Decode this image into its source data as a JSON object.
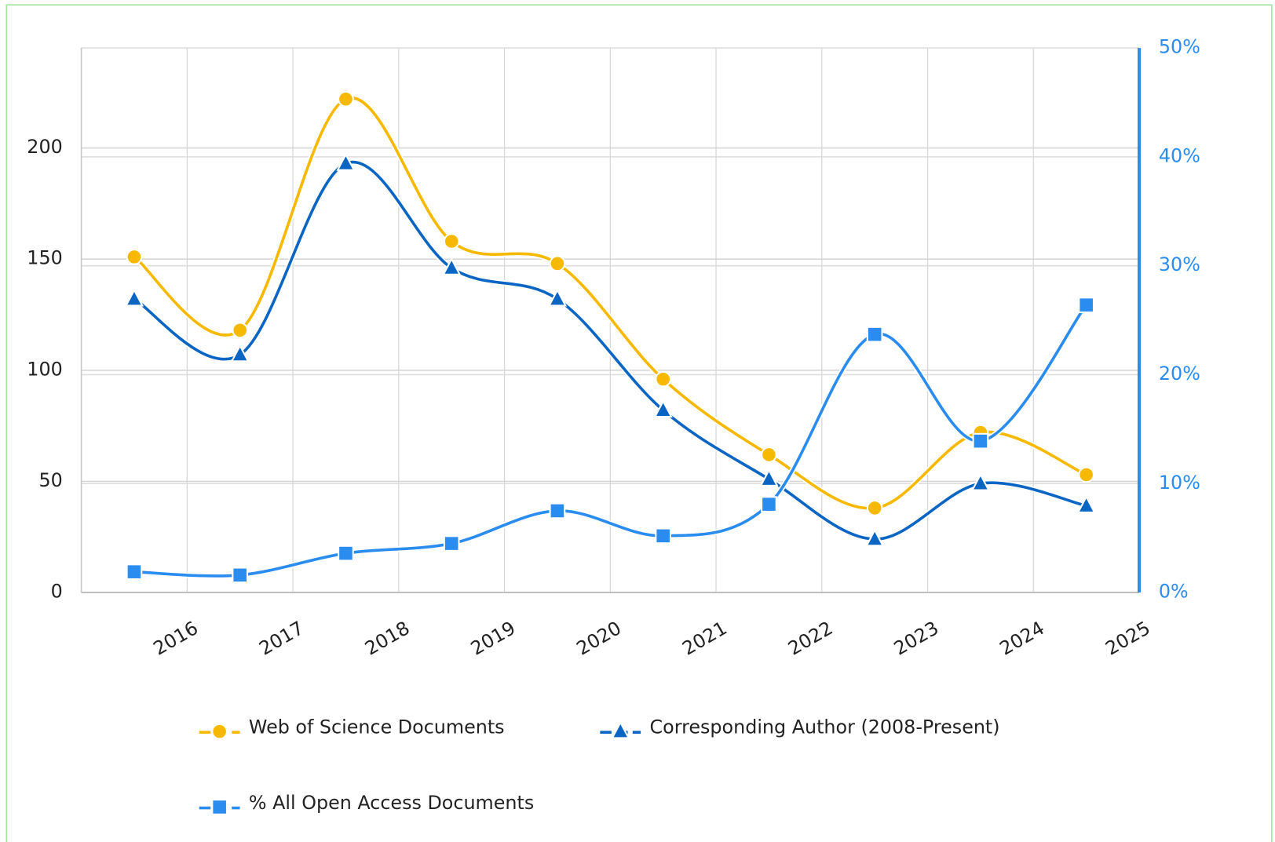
{
  "chart_data": {
    "type": "line",
    "categories": [
      "2016",
      "2017",
      "2018",
      "2019",
      "2020",
      "2021",
      "2022",
      "2023",
      "2024",
      "2025"
    ],
    "series": [
      {
        "name": "Web of Science Documents",
        "color": "#f7b900",
        "marker": "circle",
        "values": [
          151,
          118,
          222,
          158,
          148,
          96,
          62,
          38,
          72,
          53
        ]
      },
      {
        "name": "Corresponding Author (2008-Present)",
        "color": "#0b65c2",
        "marker": "triangle",
        "values": [
          132,
          107,
          193,
          146,
          132,
          82,
          51,
          24,
          49,
          39
        ]
      },
      {
        "name": "% All Open Access Documents",
        "color": "#2b8cf0",
        "marker": "square",
        "axis": "y2",
        "values": [
          1.9,
          1.6,
          3.6,
          4.5,
          7.5,
          5.2,
          8.1,
          23.7,
          13.9,
          26.4
        ]
      }
    ],
    "ylim": [
      0,
      245
    ],
    "yticks": [
      0,
      50,
      100,
      150,
      200
    ],
    "y2lim": [
      0,
      50
    ],
    "y2ticks": [
      {
        "value": 0,
        "label": "0%"
      },
      {
        "value": 10,
        "label": "10%"
      },
      {
        "value": 20,
        "label": "20%"
      },
      {
        "value": 30,
        "label": "30%"
      },
      {
        "value": 40,
        "label": "40%"
      },
      {
        "value": 50,
        "label": "50%"
      }
    ],
    "grid": true
  }
}
